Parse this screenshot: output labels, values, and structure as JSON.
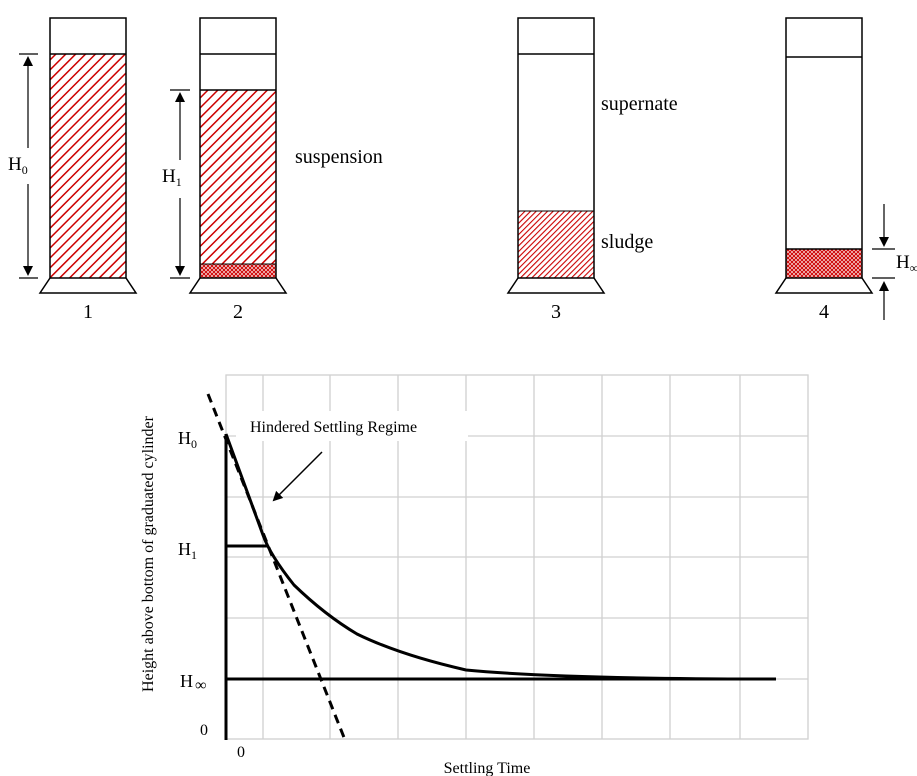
{
  "cylinders": [
    {
      "number": "1",
      "height_label": "H",
      "height_sub": "0"
    },
    {
      "number": "2",
      "height_label": "H",
      "height_sub": "1",
      "zone_label": "suspension"
    },
    {
      "number": "3",
      "supernate_label": "supernate",
      "sludge_label": "sludge"
    },
    {
      "number": "4",
      "height_label": "H",
      "height_sub": "∞"
    }
  ],
  "graph": {
    "ylabel": "Height above bottom of graduated cylinder",
    "xlabel": "Settling Time",
    "x_origin_label": "0",
    "y_ticks": [
      {
        "label": "H",
        "sub": "0"
      },
      {
        "label": "H",
        "sub": "1"
      },
      {
        "label": "H",
        "sub": "∞"
      },
      {
        "label": "0",
        "sub": ""
      }
    ],
    "annotation": "Hindered Settling Regime"
  },
  "colors": {
    "hatch": "#cc0000",
    "line": "#000000",
    "grid": "#d0d0d0"
  }
}
